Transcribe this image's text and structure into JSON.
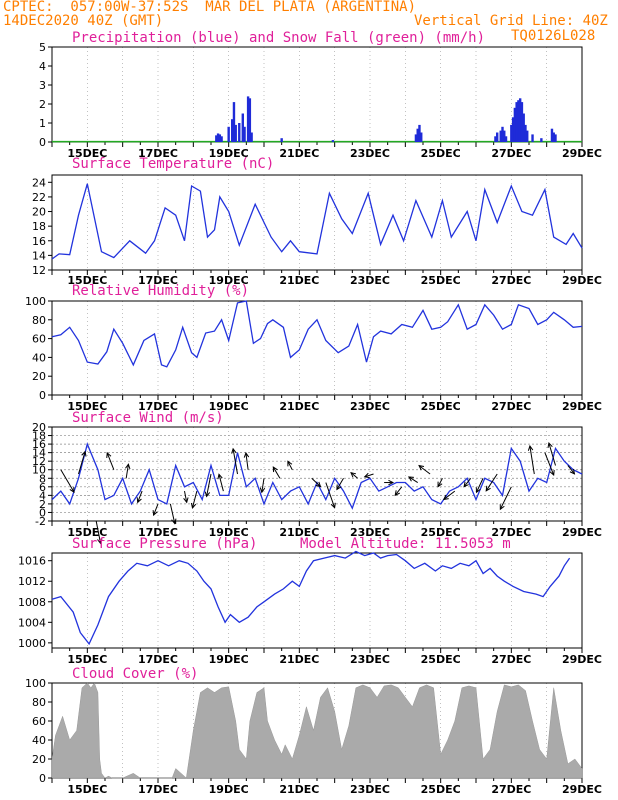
{
  "header": {
    "line1_left": "CPTEC:  057:00W-37:52S  MAR DEL PLATA (ARGENTINA)",
    "line2_left": "14DEC2020 40Z (GMT)",
    "line2_right": "Vertical Grid Line: 40Z",
    "line3_right": "TQ0126L028"
  },
  "colors": {
    "header": "#ff7f00",
    "title": "#e0209a",
    "line": "#2233dd",
    "precip": "#1f2bd8",
    "snow": "#22aa22",
    "cloud": "#aaaaaa",
    "arrow": "#000000"
  },
  "x_axis": {
    "labels": [
      "15DEC",
      "17DEC",
      "19DEC",
      "21DEC",
      "23DEC",
      "25DEC",
      "27DEC",
      "29DEC"
    ],
    "start": "14DEC2020 00Z",
    "end": "29DEC2020 00Z"
  },
  "chart_data": [
    {
      "type": "bar",
      "title": "Precipitation (blue) and Snow Fall (green) (mm/h)",
      "ylim": [
        0,
        5
      ],
      "yticks": [
        0,
        1,
        2,
        3,
        4,
        5
      ],
      "grid": false,
      "series": [
        {
          "name": "Precipitation",
          "points": [
            [
              18.65,
              0.35
            ],
            [
              18.7,
              0.45
            ],
            [
              18.75,
              0.4
            ],
            [
              18.8,
              0.3
            ],
            [
              19.0,
              0.8
            ],
            [
              19.1,
              1.2
            ],
            [
              19.15,
              2.1
            ],
            [
              19.2,
              0.9
            ],
            [
              19.3,
              1.0
            ],
            [
              19.4,
              1.5
            ],
            [
              19.45,
              0.8
            ],
            [
              19.55,
              2.4
            ],
            [
              19.6,
              2.3
            ],
            [
              19.65,
              0.5
            ],
            [
              20.5,
              0.2
            ],
            [
              21.95,
              0.1
            ],
            [
              24.3,
              0.4
            ],
            [
              24.35,
              0.7
            ],
            [
              24.4,
              0.9
            ],
            [
              24.45,
              0.5
            ],
            [
              26.55,
              0.3
            ],
            [
              26.6,
              0.5
            ],
            [
              26.7,
              0.6
            ],
            [
              26.75,
              0.8
            ],
            [
              26.8,
              0.6
            ],
            [
              26.85,
              0.3
            ],
            [
              27.0,
              0.9
            ],
            [
              27.05,
              1.3
            ],
            [
              27.1,
              1.8
            ],
            [
              27.15,
              2.1
            ],
            [
              27.2,
              2.2
            ],
            [
              27.25,
              2.3
            ],
            [
              27.3,
              2.1
            ],
            [
              27.35,
              1.5
            ],
            [
              27.4,
              0.9
            ],
            [
              27.45,
              0.6
            ],
            [
              27.6,
              0.4
            ],
            [
              27.85,
              0.2
            ],
            [
              28.15,
              0.7
            ],
            [
              28.2,
              0.5
            ],
            [
              28.25,
              0.4
            ]
          ]
        },
        {
          "name": "Snow Fall",
          "x_range": [
            14.0,
            29.0
          ],
          "value": 0.02
        }
      ]
    },
    {
      "type": "line",
      "title": "Surface Temperature (nC)",
      "ylim": [
        12,
        25
      ],
      "yticks": [
        12,
        14,
        16,
        18,
        20,
        22,
        24
      ],
      "grid": false,
      "x": [
        14.0,
        14.2,
        14.5,
        14.75,
        15.0,
        15.4,
        15.75,
        16.2,
        16.65,
        16.9,
        17.2,
        17.5,
        17.75,
        17.95,
        18.2,
        18.4,
        18.6,
        18.75,
        19.0,
        19.3,
        19.75,
        20.2,
        20.5,
        20.75,
        21.0,
        21.5,
        21.85,
        22.2,
        22.5,
        22.95,
        23.3,
        23.65,
        23.95,
        24.3,
        24.75,
        25.05,
        25.3,
        25.75,
        26.0,
        26.25,
        26.6,
        27.0,
        27.3,
        27.6,
        27.95,
        28.2,
        28.55,
        28.75,
        29.0
      ],
      "values": [
        13.5,
        14.2,
        14.1,
        19.5,
        23.8,
        14.5,
        13.7,
        16.0,
        14.3,
        16.0,
        20.5,
        19.5,
        16.0,
        23.5,
        22.8,
        16.5,
        17.5,
        22.0,
        20.0,
        15.4,
        21.0,
        16.5,
        14.5,
        16.0,
        14.5,
        14.2,
        22.5,
        19.0,
        17.0,
        22.5,
        15.5,
        19.5,
        16.0,
        21.5,
        16.5,
        21.5,
        16.5,
        20.0,
        16.0,
        23.0,
        18.5,
        23.5,
        20.0,
        19.5,
        23.0,
        16.5,
        15.5,
        17.0,
        15.0
      ]
    },
    {
      "type": "line",
      "title": "Relative Humidity (%)",
      "ylim": [
        0,
        100
      ],
      "yticks": [
        0,
        20,
        40,
        60,
        80,
        100
      ],
      "grid": false,
      "x": [
        14.0,
        14.25,
        14.5,
        14.75,
        15.0,
        15.3,
        15.55,
        15.75,
        16.0,
        16.3,
        16.6,
        16.9,
        17.1,
        17.25,
        17.5,
        17.7,
        17.95,
        18.1,
        18.35,
        18.6,
        18.8,
        19.0,
        19.25,
        19.5,
        19.7,
        19.9,
        20.1,
        20.25,
        20.55,
        20.75,
        21.0,
        21.25,
        21.5,
        21.75,
        22.1,
        22.4,
        22.65,
        22.9,
        23.1,
        23.3,
        23.6,
        23.9,
        24.2,
        24.5,
        24.75,
        25.0,
        25.2,
        25.5,
        25.75,
        26.0,
        26.25,
        26.5,
        26.75,
        27.0,
        27.2,
        27.5,
        27.75,
        28.0,
        28.2,
        28.5,
        28.75,
        29.0
      ],
      "values": [
        62,
        64,
        72,
        58,
        35,
        33,
        46,
        70,
        55,
        32,
        58,
        65,
        32,
        30,
        48,
        72,
        45,
        40,
        66,
        68,
        80,
        58,
        98,
        100,
        55,
        60,
        76,
        80,
        72,
        40,
        48,
        70,
        80,
        58,
        45,
        52,
        75,
        35,
        62,
        68,
        65,
        75,
        72,
        90,
        70,
        72,
        78,
        96,
        70,
        75,
        96,
        85,
        70,
        75,
        96,
        92,
        75,
        80,
        88,
        80,
        72,
        73
      ]
    },
    {
      "type": "line",
      "title": "Surface Wind (m/s)",
      "ylim": [
        -2,
        20
      ],
      "yticks": [
        -2,
        0,
        2,
        4,
        6,
        8,
        10,
        12,
        14,
        16,
        18,
        20
      ],
      "grid": true,
      "x": [
        14.0,
        14.25,
        14.5,
        14.75,
        15.0,
        15.3,
        15.5,
        15.75,
        16.0,
        16.25,
        16.5,
        16.75,
        17.0,
        17.25,
        17.5,
        17.75,
        18.0,
        18.25,
        18.5,
        18.75,
        19.0,
        19.25,
        19.5,
        19.75,
        20.0,
        20.25,
        20.5,
        20.75,
        21.0,
        21.25,
        21.5,
        21.75,
        22.0,
        22.25,
        22.5,
        22.75,
        23.0,
        23.25,
        23.5,
        23.75,
        24.0,
        24.25,
        24.5,
        24.75,
        25.0,
        25.25,
        25.5,
        25.75,
        26.0,
        26.25,
        26.5,
        26.75,
        27.0,
        27.25,
        27.5,
        27.75,
        28.0,
        28.25,
        28.5,
        28.75,
        29.0
      ],
      "values": [
        3,
        5,
        2,
        8,
        16,
        10,
        3,
        4,
        8,
        2,
        5,
        10,
        3,
        2,
        11,
        6,
        7,
        3,
        11,
        4,
        4,
        14,
        6,
        8,
        2,
        7,
        3,
        5,
        6,
        2,
        7,
        3,
        8,
        5,
        1,
        7,
        8,
        5,
        6,
        7,
        7,
        5,
        6,
        3,
        2,
        5,
        6,
        8,
        3,
        8,
        7,
        4,
        15,
        12,
        5,
        8,
        7,
        15,
        12,
        10,
        9
      ],
      "wind_vectors": [
        [
          14.25,
          10,
          6,
          -8
        ],
        [
          14.75,
          9,
          3,
          8
        ],
        [
          15.25,
          -2,
          2,
          -8
        ],
        [
          15.75,
          10,
          -3,
          6
        ],
        [
          16.1,
          8,
          1,
          5
        ],
        [
          16.55,
          5,
          -2,
          -4
        ],
        [
          17.0,
          2,
          -2,
          -4
        ],
        [
          17.35,
          2,
          2,
          -7
        ],
        [
          17.75,
          5,
          1,
          -4
        ],
        [
          18.1,
          5,
          -2,
          -6
        ],
        [
          18.5,
          9,
          -2,
          -8
        ],
        [
          18.85,
          5,
          -2,
          6
        ],
        [
          19.25,
          9,
          -2,
          9
        ],
        [
          19.55,
          10,
          -1,
          6
        ],
        [
          20.0,
          8,
          -1,
          -5
        ],
        [
          20.45,
          8,
          -3,
          4
        ],
        [
          20.8,
          10,
          -2,
          3
        ],
        [
          21.35,
          8,
          4,
          -3
        ],
        [
          21.75,
          7,
          4,
          -9
        ],
        [
          22.25,
          8,
          -3,
          -4
        ],
        [
          22.65,
          8,
          -3,
          2
        ],
        [
          23.1,
          9,
          -4,
          -1
        ],
        [
          23.4,
          7,
          4,
          0
        ],
        [
          23.9,
          6,
          -3,
          -3
        ],
        [
          24.35,
          7,
          -4,
          2
        ],
        [
          24.7,
          9,
          -5,
          3
        ],
        [
          25.05,
          8,
          -2,
          -3
        ],
        [
          25.4,
          5,
          -5,
          -3
        ],
        [
          25.85,
          8,
          -3,
          -3
        ],
        [
          26.2,
          8,
          -3,
          -5
        ],
        [
          26.6,
          9,
          -5,
          -6
        ],
        [
          27.0,
          6,
          -5,
          -8
        ],
        [
          27.65,
          9,
          -2,
          10
        ],
        [
          27.95,
          14,
          4,
          -8
        ],
        [
          28.25,
          11,
          -3,
          8
        ],
        [
          28.6,
          11,
          3,
          -3
        ]
      ]
    },
    {
      "type": "line",
      "title": "Surface Pressure (hPa)",
      "annotation": "Model Altitude: 11.5053 m",
      "ylim": [
        999,
        1017.5
      ],
      "yticks": [
        1000,
        1004,
        1008,
        1012,
        1016
      ],
      "grid": false,
      "x": [
        14.0,
        14.25,
        14.6,
        14.8,
        15.05,
        15.3,
        15.6,
        15.9,
        16.15,
        16.4,
        16.7,
        17.0,
        17.3,
        17.6,
        17.85,
        18.1,
        18.3,
        18.5,
        18.7,
        18.9,
        19.05,
        19.3,
        19.55,
        19.8,
        20.0,
        20.3,
        20.55,
        20.8,
        21.0,
        21.2,
        21.4,
        21.7,
        22.0,
        22.3,
        22.6,
        22.85,
        23.1,
        23.3,
        23.5,
        23.75,
        24.0,
        24.25,
        24.55,
        24.85,
        25.05,
        25.3,
        25.55,
        25.8,
        26.0,
        26.2,
        26.4,
        26.6,
        26.8,
        27.05,
        27.35,
        27.7,
        27.9,
        28.1,
        28.35,
        28.5,
        28.65
      ],
      "values": [
        1008.5,
        1009,
        1006,
        1002,
        999.8,
        1003.5,
        1009,
        1012,
        1014,
        1015.5,
        1015,
        1016,
        1015,
        1016,
        1015.5,
        1014,
        1012,
        1010.5,
        1007,
        1004,
        1005.5,
        1004,
        1005,
        1007,
        1008,
        1009.5,
        1010.5,
        1012,
        1011,
        1014,
        1016,
        1016.5,
        1017,
        1016.5,
        1017.8,
        1017,
        1017.5,
        1016.5,
        1017,
        1017.2,
        1016,
        1014.5,
        1015.5,
        1014,
        1015,
        1014.5,
        1015.5,
        1015,
        1016,
        1013.5,
        1014.5,
        1013,
        1012,
        1011,
        1010,
        1009.5,
        1009,
        1011,
        1013,
        1015,
        1016.5
      ]
    },
    {
      "type": "area",
      "title": "Cloud Cover (%)",
      "ylim": [
        0,
        100
      ],
      "yticks": [
        0,
        20,
        40,
        60,
        80,
        100
      ],
      "grid": false,
      "x": [
        14.0,
        14.1,
        14.3,
        14.5,
        14.7,
        14.85,
        15.0,
        15.1,
        15.2,
        15.3,
        15.35,
        15.4,
        15.5,
        15.6,
        15.7,
        15.8,
        15.9,
        16.0,
        16.3,
        16.5,
        16.6,
        17.4,
        17.5,
        17.8,
        18.0,
        18.2,
        18.4,
        18.6,
        18.8,
        19.0,
        19.2,
        19.3,
        19.5,
        19.6,
        19.8,
        20.0,
        20.1,
        20.3,
        20.5,
        20.6,
        20.8,
        21.0,
        21.2,
        21.4,
        21.6,
        21.8,
        22.0,
        22.2,
        22.4,
        22.6,
        22.8,
        23.0,
        23.2,
        23.4,
        23.6,
        23.8,
        24.0,
        24.2,
        24.4,
        24.6,
        24.8,
        25.0,
        25.2,
        25.4,
        25.6,
        25.8,
        26.0,
        26.2,
        26.4,
        26.6,
        26.8,
        27.0,
        27.2,
        27.4,
        27.6,
        27.8,
        28.0,
        28.2,
        28.4,
        28.6,
        28.8,
        29.0
      ],
      "values": [
        20,
        45,
        65,
        40,
        50,
        95,
        100,
        95,
        100,
        90,
        20,
        5,
        0,
        2,
        0,
        0,
        0,
        0,
        5,
        0,
        0,
        0,
        10,
        0,
        50,
        90,
        95,
        90,
        95,
        96,
        60,
        30,
        20,
        60,
        90,
        95,
        60,
        40,
        25,
        35,
        20,
        45,
        75,
        50,
        85,
        95,
        70,
        30,
        55,
        95,
        98,
        95,
        85,
        97,
        98,
        95,
        85,
        75,
        95,
        98,
        95,
        25,
        40,
        60,
        95,
        97,
        95,
        20,
        30,
        70,
        98,
        96,
        98,
        92,
        60,
        30,
        20,
        95,
        50,
        15,
        20,
        10
      ]
    }
  ]
}
